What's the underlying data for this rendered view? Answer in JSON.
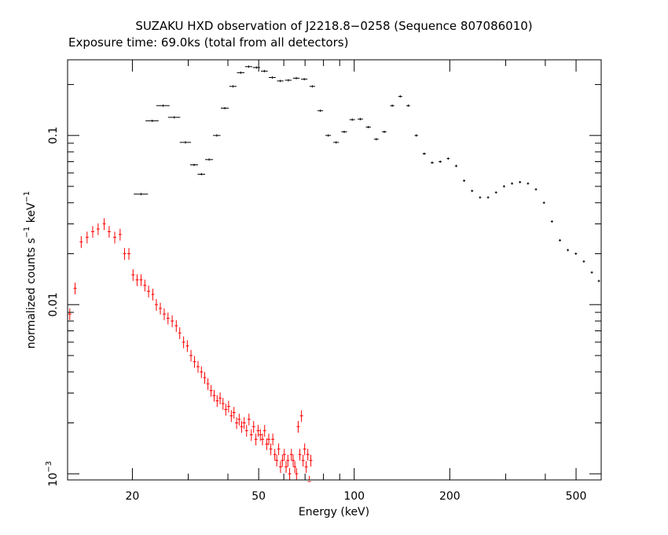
{
  "chart_data": {
    "type": "scatter",
    "title": "SUZAKU HXD observation of J2218.8−0258 (Sequence 807086010)",
    "subtitle": "Exposure time: 69.0ks (total from all detectors)",
    "xlabel": "Energy (keV)",
    "ylabel_main": "normalized counts s",
    "ylabel_exp1": "−1",
    "ylabel_mid": " keV",
    "ylabel_exp2": "−1",
    "x_scale": "log",
    "y_scale": "log",
    "xlim": [
      12.5,
      600
    ],
    "ylim": [
      0.00092,
      0.28
    ],
    "x_ticks": [
      {
        "value": 20,
        "label": "20"
      },
      {
        "value": 50,
        "label": "50"
      },
      {
        "value": 100,
        "label": "100"
      },
      {
        "value": 200,
        "label": "200"
      },
      {
        "value": 500,
        "label": "500"
      }
    ],
    "y_ticks": [
      {
        "value": 0.1,
        "label": "0.1"
      },
      {
        "value": 0.01,
        "label": "0.01"
      },
      {
        "value": 0.001,
        "label_base": "10",
        "label_exp": "−3"
      }
    ],
    "grid": false,
    "series": [
      {
        "color": "#000000",
        "points": [
          [
            21.3,
            0.045,
            1.1
          ],
          [
            23.1,
            0.122,
            1.1
          ],
          [
            25.0,
            0.15,
            1.2
          ],
          [
            27.1,
            0.128,
            1.2
          ],
          [
            29.4,
            0.091,
            1.2
          ],
          [
            31.3,
            0.067,
            0.9
          ],
          [
            33.0,
            0.059,
            0.9
          ],
          [
            34.9,
            0.072,
            1.0
          ],
          [
            36.9,
            0.1,
            1.0
          ],
          [
            39.1,
            0.145,
            1.1
          ],
          [
            41.5,
            0.195,
            1.1
          ],
          [
            43.9,
            0.235,
            1.2
          ],
          [
            46.5,
            0.255,
            1.2
          ],
          [
            49.2,
            0.252,
            1.3
          ],
          [
            52.1,
            0.24,
            1.3
          ],
          [
            55.2,
            0.22,
            1.4
          ],
          [
            58.5,
            0.21,
            1.4
          ],
          [
            62.0,
            0.212,
            1.5
          ],
          [
            65.7,
            0.218,
            1.6
          ],
          [
            69.6,
            0.215,
            1.6
          ],
          [
            73.8,
            0.195,
            1.5
          ],
          [
            78.2,
            0.14,
            1.6
          ],
          [
            82.8,
            0.1,
            1.7
          ],
          [
            87.7,
            0.091,
            1.8
          ],
          [
            93.0,
            0.105,
            1.9
          ],
          [
            98.6,
            0.124,
            2.0
          ],
          [
            104.5,
            0.125,
            2.0
          ],
          [
            110.8,
            0.112,
            2.0
          ],
          [
            117.4,
            0.095,
            2.0
          ],
          [
            124.4,
            0.105,
            2.0
          ],
          [
            131.8,
            0.15,
            2.0
          ],
          [
            139.7,
            0.17,
            2.0
          ],
          [
            148.0,
            0.15,
            2.0
          ],
          [
            156.9,
            0.1,
            2.0
          ],
          [
            166.2,
            0.078,
            2.0
          ],
          [
            176.1,
            0.069,
            2.0
          ],
          [
            186.6,
            0.07,
            2.0
          ],
          [
            197.7,
            0.073,
            2.0
          ],
          [
            209.5,
            0.066,
            2.0
          ],
          [
            222.0,
            0.054,
            2.0
          ],
          [
            235.2,
            0.047,
            2.0
          ],
          [
            249.2,
            0.043,
            2.0
          ],
          [
            264.1,
            0.043,
            2.0
          ],
          [
            279.8,
            0.046,
            2.0
          ],
          [
            296.5,
            0.05,
            2.0
          ],
          [
            314.2,
            0.052,
            2.0
          ],
          [
            332.9,
            0.053,
            2.0
          ],
          [
            352.8,
            0.052,
            2.0
          ],
          [
            373.8,
            0.048,
            2.0
          ],
          [
            396.1,
            0.04,
            2.0
          ],
          [
            419.7,
            0.031,
            2.0
          ],
          [
            444.7,
            0.024,
            2.0
          ],
          [
            471.2,
            0.021,
            2.0
          ],
          [
            499.3,
            0.02,
            2.0
          ],
          [
            529.0,
            0.018,
            2.0
          ],
          [
            560.5,
            0.0155,
            2.0
          ],
          [
            590.0,
            0.0138,
            2.0
          ]
        ]
      },
      {
        "color": "#ff0000",
        "points": [
          [
            12.7,
            0.0088,
            0.0008
          ],
          [
            13.2,
            0.0125,
            0.001
          ],
          [
            13.8,
            0.0235,
            0.0015
          ],
          [
            14.4,
            0.025,
            0.0015
          ],
          [
            15.0,
            0.027,
            0.0016
          ],
          [
            15.6,
            0.028,
            0.0016
          ],
          [
            16.3,
            0.03,
            0.0017
          ],
          [
            16.9,
            0.027,
            0.0016
          ],
          [
            17.6,
            0.025,
            0.0015
          ],
          [
            18.3,
            0.026,
            0.0016
          ],
          [
            18.9,
            0.02,
            0.0014
          ],
          [
            19.5,
            0.02,
            0.0014
          ],
          [
            20.1,
            0.015,
            0.0013
          ],
          [
            20.7,
            0.014,
            0.0012
          ],
          [
            21.3,
            0.014,
            0.0012
          ],
          [
            21.9,
            0.013,
            0.0012
          ],
          [
            22.5,
            0.012,
            0.0011
          ],
          [
            23.2,
            0.0115,
            0.0011
          ],
          [
            23.8,
            0.01,
            0.001
          ],
          [
            24.5,
            0.0095,
            0.001
          ],
          [
            25.2,
            0.0088,
            0.0009
          ],
          [
            25.9,
            0.0083,
            0.0009
          ],
          [
            26.7,
            0.008,
            0.0009
          ],
          [
            27.5,
            0.0075,
            0.0009
          ],
          [
            28.2,
            0.0068,
            0.0008
          ],
          [
            29.0,
            0.006,
            0.0008
          ],
          [
            29.8,
            0.0057,
            0.0008
          ],
          [
            30.6,
            0.005,
            0.0007
          ],
          [
            31.4,
            0.0046,
            0.0007
          ],
          [
            32.2,
            0.0043,
            0.0007
          ],
          [
            33.0,
            0.004,
            0.0006
          ],
          [
            33.8,
            0.0037,
            0.0006
          ],
          [
            34.6,
            0.0034,
            0.0006
          ],
          [
            35.4,
            0.0031,
            0.0006
          ],
          [
            36.2,
            0.0029,
            0.0005
          ],
          [
            37.0,
            0.0027,
            0.0005
          ],
          [
            37.8,
            0.0028,
            0.0005
          ],
          [
            38.6,
            0.0026,
            0.0005
          ],
          [
            39.4,
            0.0024,
            0.0005
          ],
          [
            40.2,
            0.0025,
            0.0005
          ],
          [
            41.0,
            0.0022,
            0.0005
          ],
          [
            41.8,
            0.0023,
            0.0005
          ],
          [
            42.6,
            0.002,
            0.0004
          ],
          [
            43.4,
            0.0021,
            0.0004
          ],
          [
            44.2,
            0.0019,
            0.0004
          ],
          [
            45.0,
            0.002,
            0.0004
          ],
          [
            45.8,
            0.0018,
            0.0004
          ],
          [
            46.6,
            0.0021,
            0.0004
          ],
          [
            47.4,
            0.0017,
            0.0004
          ],
          [
            48.2,
            0.0019,
            0.0004
          ],
          [
            49.0,
            0.0016,
            0.0004
          ],
          [
            49.8,
            0.0018,
            0.0004
          ],
          [
            50.6,
            0.0017,
            0.0004
          ],
          [
            51.4,
            0.0016,
            0.0004
          ],
          [
            52.2,
            0.0018,
            0.0004
          ],
          [
            53.0,
            0.0015,
            0.0004
          ],
          [
            53.8,
            0.0016,
            0.0004
          ],
          [
            54.6,
            0.0014,
            0.0003
          ],
          [
            55.4,
            0.0016,
            0.0004
          ],
          [
            56.2,
            0.0013,
            0.0003
          ],
          [
            57.0,
            0.0012,
            0.0003
          ],
          [
            57.8,
            0.0014,
            0.0003
          ],
          [
            58.6,
            0.0011,
            0.0003
          ],
          [
            59.4,
            0.0012,
            0.0003
          ],
          [
            60.2,
            0.0013,
            0.0003
          ],
          [
            61.0,
            0.0011,
            0.0003
          ],
          [
            61.8,
            0.0012,
            0.0003
          ],
          [
            62.6,
            0.001,
            0.0003
          ],
          [
            63.4,
            0.0013,
            0.0003
          ],
          [
            64.2,
            0.0012,
            0.0003
          ],
          [
            65.0,
            0.0011,
            0.0003
          ],
          [
            65.8,
            0.001,
            0.0003
          ],
          [
            66.6,
            0.0019,
            0.0004
          ],
          [
            67.4,
            0.0013,
            0.0003
          ],
          [
            68.2,
            0.0022,
            0.0005
          ],
          [
            69.0,
            0.0012,
            0.0003
          ],
          [
            69.8,
            0.0014,
            0.0003
          ],
          [
            70.6,
            0.0011,
            0.0003
          ],
          [
            71.4,
            0.0013,
            0.0003
          ],
          [
            72.2,
            0.0009,
            0.0003
          ],
          [
            73.0,
            0.0012,
            0.0003
          ]
        ]
      }
    ]
  }
}
